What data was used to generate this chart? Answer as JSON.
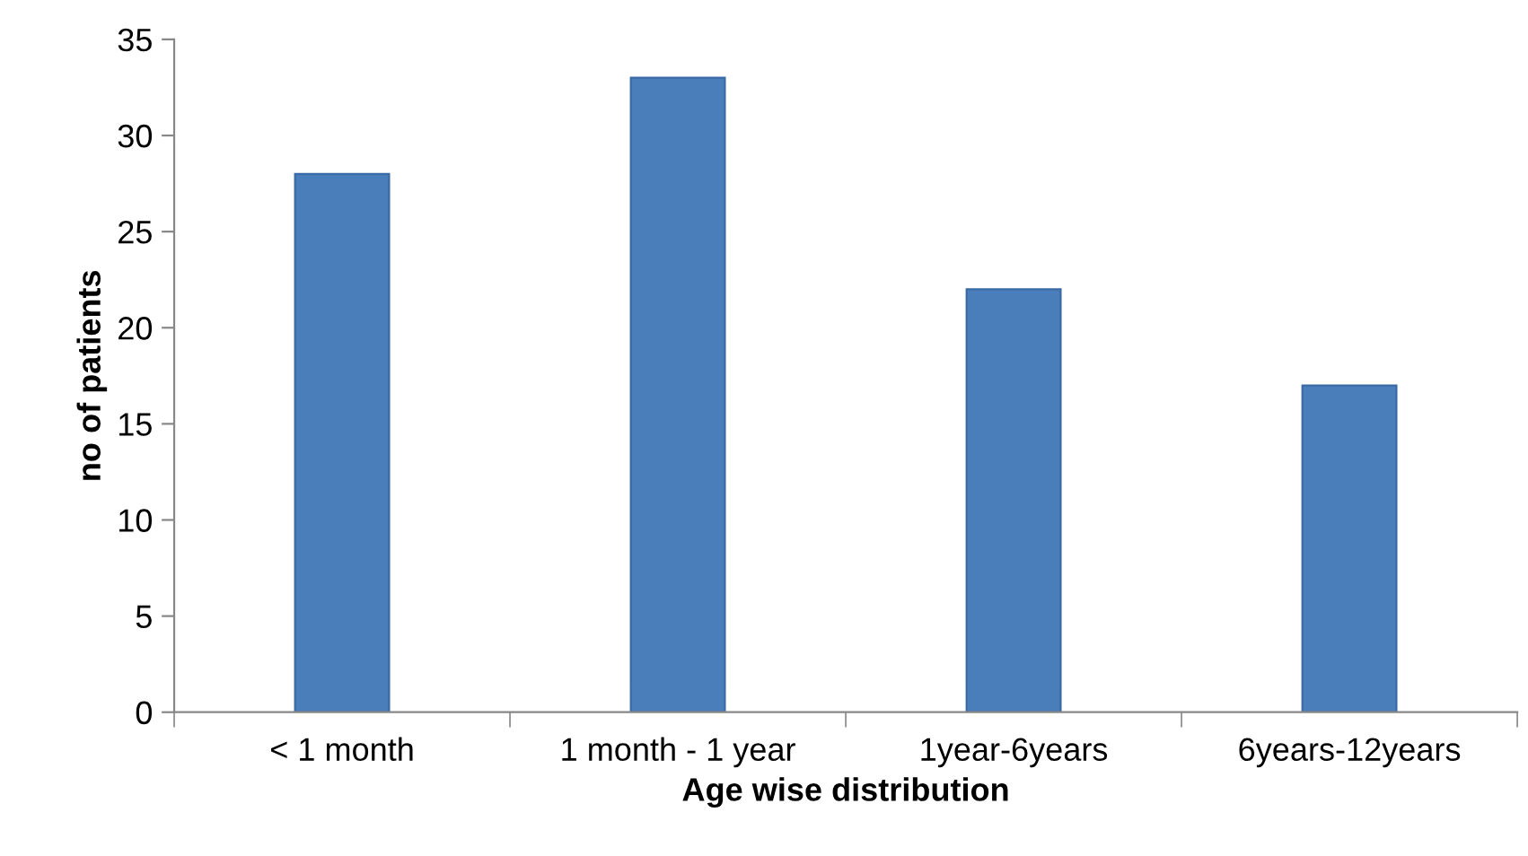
{
  "chart_data": {
    "type": "bar",
    "xlabel": "Age wise distribution",
    "ylabel": "no of patients",
    "categories": [
      "< 1 month",
      "1 month - 1 year",
      "1year-6years",
      "6years-12years"
    ],
    "values": [
      28,
      33,
      22,
      17
    ],
    "color": "#4a7ebb",
    "ylim": [
      0,
      35
    ],
    "yticks": [
      0,
      5,
      10,
      15,
      20,
      25,
      30,
      35
    ],
    "grid": false,
    "legend": false
  }
}
